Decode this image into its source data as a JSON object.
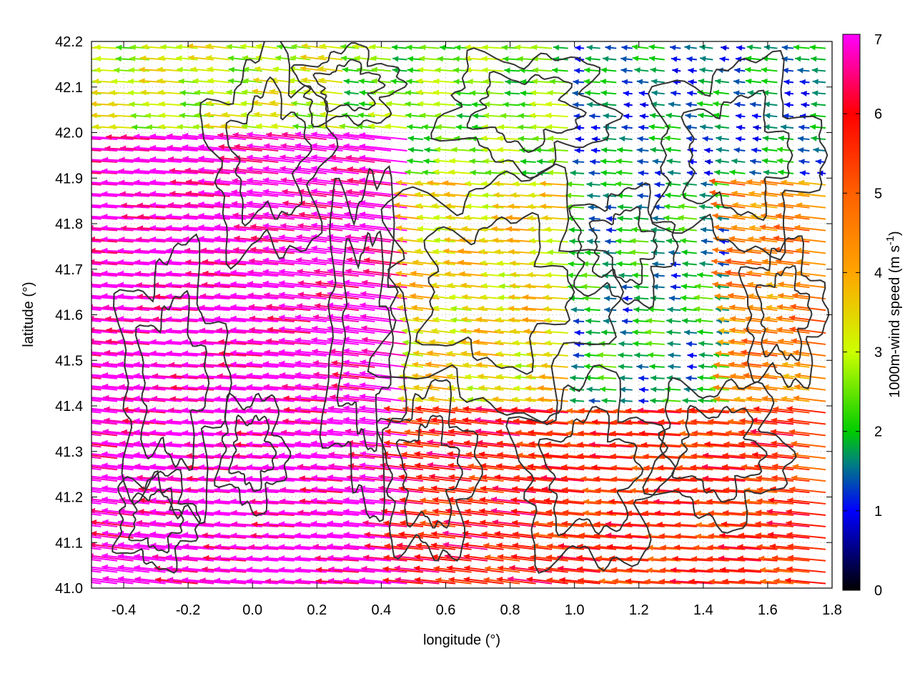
{
  "chart_data": {
    "type": "vector-field",
    "title": "",
    "xlabel": "longitude (°)",
    "ylabel": "latitude (°)",
    "colorbar_label": "1000m-wind speed (m s-1)",
    "xlim": [
      -0.5,
      1.8
    ],
    "ylim": [
      41.0,
      42.2
    ],
    "x_ticks": [
      "-0.4",
      "-0.2",
      "0.0",
      "0.2",
      "0.4",
      "0.6",
      "0.8",
      "1.0",
      "1.2",
      "1.4",
      "1.6",
      "1.8"
    ],
    "y_ticks": [
      "41.0",
      "41.1",
      "41.2",
      "41.3",
      "41.4",
      "41.5",
      "41.6",
      "41.7",
      "41.8",
      "41.9",
      "42.0",
      "42.1",
      "42.2"
    ],
    "colorbar_ticks": [
      "0",
      "1",
      "2",
      "3",
      "4",
      "5",
      "6",
      "7"
    ],
    "colorbar_range": [
      0,
      7
    ],
    "colormap": [
      {
        "v": 0,
        "color": "#000000"
      },
      {
        "v": 1,
        "color": "#0000ff"
      },
      {
        "v": 1.6,
        "color": "#008080"
      },
      {
        "v": 2,
        "color": "#00cc00"
      },
      {
        "v": 3,
        "color": "#ccff00"
      },
      {
        "v": 4,
        "color": "#ffa500"
      },
      {
        "v": 5,
        "color": "#ff6000"
      },
      {
        "v": 6,
        "color": "#ff0000"
      },
      {
        "v": 7,
        "color": "#ff00ff"
      }
    ],
    "wind_direction": "easterly (arrows point west, slightly northward)",
    "speed_regions": [
      {
        "name": "southwest",
        "lon_range": [
          -0.5,
          0.5
        ],
        "lat_range": [
          41.0,
          42.0
        ],
        "speed": 7.0
      },
      {
        "name": "south-central",
        "lon_range": [
          0.5,
          1.0
        ],
        "lat_range": [
          41.0,
          41.4
        ],
        "speed": 5.8
      },
      {
        "name": "southeast",
        "lon_range": [
          1.0,
          1.8
        ],
        "lat_range": [
          41.0,
          41.4
        ],
        "speed": 5.5
      },
      {
        "name": "central",
        "lon_range": [
          0.5,
          1.0
        ],
        "lat_range": [
          41.4,
          41.9
        ],
        "speed": 3.5
      },
      {
        "name": "east-central",
        "lon_range": [
          1.0,
          1.5
        ],
        "lat_range": [
          41.4,
          41.9
        ],
        "speed": 1.8
      },
      {
        "name": "east",
        "lon_range": [
          1.5,
          1.8
        ],
        "lat_range": [
          41.4,
          41.9
        ],
        "speed": 4.5
      },
      {
        "name": "north-central",
        "lon_range": [
          0.3,
          1.0
        ],
        "lat_range": [
          41.9,
          42.2
        ],
        "speed": 2.5
      },
      {
        "name": "northeast",
        "lon_range": [
          1.0,
          1.8
        ],
        "lat_range": [
          41.9,
          42.2
        ],
        "speed": 1.5
      }
    ],
    "contours": "terrain elevation contour lines (dark grey)",
    "grid": "dotted"
  }
}
